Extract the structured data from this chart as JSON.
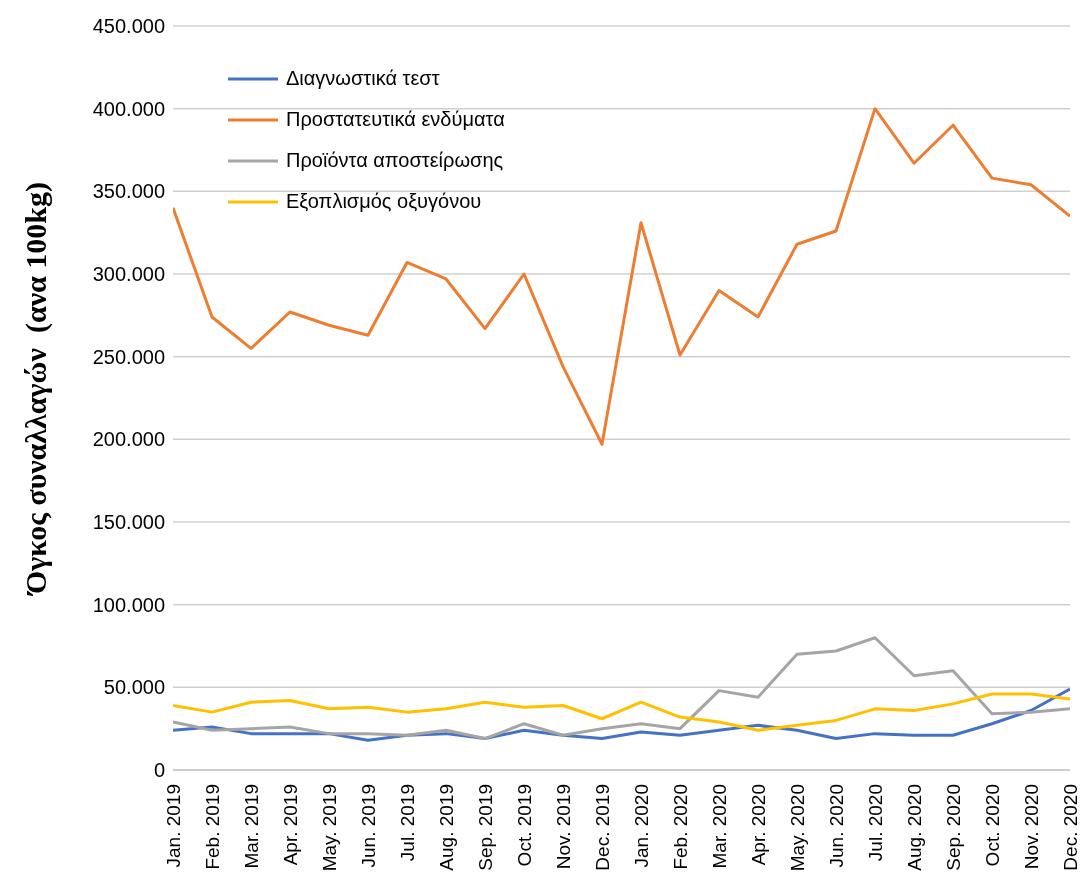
{
  "chart_data": {
    "type": "line",
    "ylabel": "Όγκος συναλλαγών  (ανα 100kg)",
    "categories": [
      "Jan. 2019",
      "Feb. 2019",
      "Mar. 2019",
      "Apr. 2019",
      "May. 2019",
      "Jun. 2019",
      "Jul. 2019",
      "Aug. 2019",
      "Sep. 2019",
      "Oct. 2019",
      "Nov. 2019",
      "Dec. 2019",
      "Jan. 2020",
      "Feb. 2020",
      "Mar. 2020",
      "Apr. 2020",
      "May. 2020",
      "Jun. 2020",
      "Jul. 2020",
      "Aug. 2020",
      "Sep. 2020",
      "Oct. 2020",
      "Nov. 2020",
      "Dec. 2020"
    ],
    "series": [
      {
        "name": "Διαγνωστικά τεστ",
        "color": "#4472c4",
        "values": [
          24000,
          26000,
          22000,
          22000,
          22000,
          18000,
          21000,
          22000,
          19000,
          24000,
          21000,
          19000,
          23000,
          21000,
          24000,
          27000,
          24000,
          19000,
          22000,
          21000,
          21000,
          28000,
          36000,
          49000
        ]
      },
      {
        "name": "Προστατευτικά ενδύματα",
        "color": "#ed7d31",
        "values": [
          340000,
          274000,
          255000,
          277000,
          269000,
          263000,
          307000,
          297000,
          267000,
          300000,
          244000,
          197000,
          331000,
          251000,
          290000,
          274000,
          318000,
          326000,
          400000,
          367000,
          390000,
          358000,
          354000,
          335000
        ]
      },
      {
        "name": "Προϊόντα αποστείρωσης",
        "color": "#a5a5a5",
        "values": [
          29000,
          24000,
          25000,
          26000,
          22000,
          22000,
          21000,
          24000,
          19000,
          28000,
          21000,
          25000,
          28000,
          25000,
          48000,
          44000,
          70000,
          72000,
          80000,
          57000,
          60000,
          34000,
          35000,
          37000
        ]
      },
      {
        "name": "Εξοπλισμός οξυγόνου",
        "color": "#ffc000",
        "values": [
          39000,
          35000,
          41000,
          42000,
          37000,
          38000,
          35000,
          37000,
          41000,
          38000,
          39000,
          31000,
          41000,
          32000,
          29000,
          24000,
          27000,
          30000,
          37000,
          36000,
          40000,
          46000,
          46000,
          43000
        ]
      }
    ],
    "ylim": [
      0,
      450000
    ],
    "yticks": [
      0,
      {
        "value": 50000,
        "label": "50.000"
      },
      {
        "value": 100000,
        "label": "100.000"
      },
      {
        "value": 150000,
        "label": "150.000"
      },
      {
        "value": 200000,
        "label": "200.000"
      },
      {
        "value": 250000,
        "label": "250.000"
      },
      {
        "value": 300000,
        "label": "300.000"
      },
      {
        "value": 350000,
        "label": "350.000"
      },
      {
        "value": 400000,
        "label": "400.000"
      },
      {
        "value": 450000,
        "label": "450.000"
      }
    ],
    "grid": "y",
    "legend": "top left",
    "marker": "none",
    "line_style": "solid"
  }
}
